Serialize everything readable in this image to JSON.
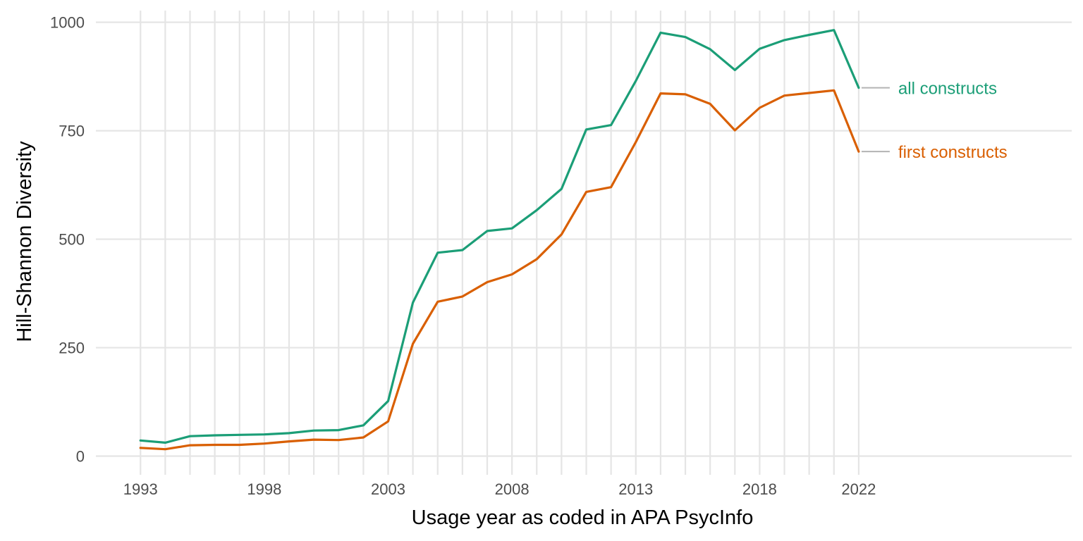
{
  "chart_data": {
    "type": "line",
    "xlabel": "Usage year as coded in APA PsycInfo",
    "ylabel": "Hill-Shannon Diversity",
    "xlim": [
      1991.2,
      2030.6
    ],
    "ylim": [
      -43,
      1027
    ],
    "x_ticks": [
      1993,
      1998,
      2003,
      2008,
      2013,
      2018,
      2022
    ],
    "x_tick_labels": [
      "1993",
      "1998",
      "2003",
      "2008",
      "2013",
      "2018",
      "2022"
    ],
    "y_ticks": [
      0,
      250,
      500,
      750,
      1000
    ],
    "y_tick_labels": [
      "0",
      "250",
      "500",
      "750",
      "1000"
    ],
    "grid": true,
    "legend": "direct labels at right",
    "x": [
      1993,
      1994,
      1995,
      1996,
      1997,
      1998,
      1999,
      2000,
      2001,
      2002,
      2003,
      2004,
      2005,
      2006,
      2007,
      2008,
      2009,
      2010,
      2011,
      2012,
      2013,
      2014,
      2015,
      2016,
      2017,
      2018,
      2019,
      2020,
      2021,
      2022
    ],
    "series": [
      {
        "name": "all constructs",
        "color": "#1b9e77",
        "values": [
          36,
          31,
          46,
          48,
          49,
          50,
          53,
          59,
          60,
          71,
          127,
          354,
          469,
          475,
          519,
          525,
          567,
          616,
          753,
          763,
          865,
          976,
          966,
          938,
          890,
          939,
          959,
          971,
          982,
          849
        ]
      },
      {
        "name": "first constructs",
        "color": "#d95f02",
        "values": [
          19,
          16,
          25,
          26,
          26,
          29,
          34,
          38,
          37,
          43,
          80,
          259,
          356,
          368,
          401,
          419,
          454,
          511,
          609,
          620,
          724,
          836,
          834,
          812,
          751,
          803,
          831,
          837,
          843,
          702
        ]
      }
    ]
  }
}
